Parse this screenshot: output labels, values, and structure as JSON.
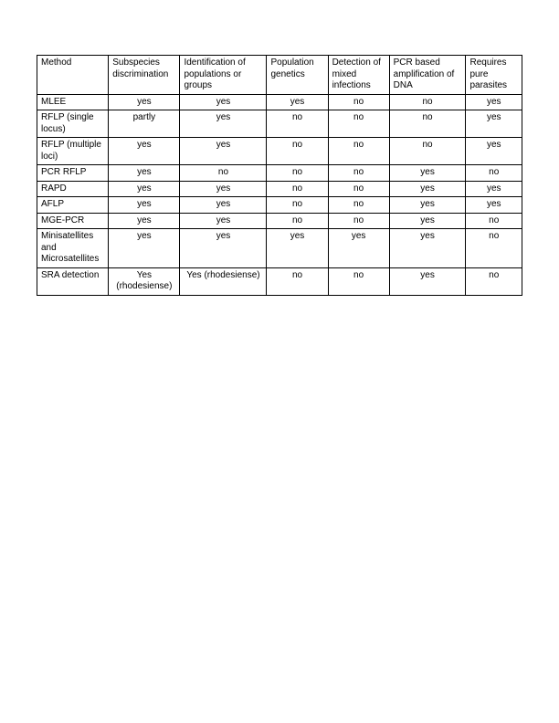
{
  "table": {
    "columns": [
      "Method",
      "Subspecies discrimination",
      "Identification of populations or groups",
      "Population genetics",
      "Detection of mixed infections",
      "PCR based amplification of DNA",
      "Requires pure parasites"
    ],
    "rows": [
      {
        "method": "MLEE",
        "c1": "yes",
        "c2": "yes",
        "c3": "yes",
        "c4": "no",
        "c5": "no",
        "c6": "yes"
      },
      {
        "method": "RFLP (single locus)",
        "c1": "partly",
        "c2": "yes",
        "c3": "no",
        "c4": "no",
        "c5": "no",
        "c6": "yes"
      },
      {
        "method": "RFLP (multiple loci)",
        "c1": "yes",
        "c2": "yes",
        "c3": "no",
        "c4": "no",
        "c5": "no",
        "c6": "yes"
      },
      {
        "method": "PCR RFLP",
        "c1": "yes",
        "c2": "no",
        "c3": "no",
        "c4": "no",
        "c5": "yes",
        "c6": "no"
      },
      {
        "method": "RAPD",
        "c1": "yes",
        "c2": "yes",
        "c3": "no",
        "c4": "no",
        "c5": "yes",
        "c6": "yes"
      },
      {
        "method": "AFLP",
        "c1": "yes",
        "c2": "yes",
        "c3": "no",
        "c4": "no",
        "c5": "yes",
        "c6": "yes"
      },
      {
        "method": "MGE-PCR",
        "c1": "yes",
        "c2": "yes",
        "c3": "no",
        "c4": "no",
        "c5": "yes",
        "c6": "no"
      },
      {
        "method": "Minisatellites and Microsatellites",
        "c1": "yes",
        "c2": "yes",
        "c3": "yes",
        "c4": "yes",
        "c5": "yes",
        "c6": "no"
      },
      {
        "method": "SRA detection",
        "c1": "Yes (rhodesiense)",
        "c2": "Yes (rhodesiense)",
        "c3": "no",
        "c4": "no",
        "c5": "yes",
        "c6": "no"
      }
    ],
    "border_color": "#000000",
    "background_color": "#ffffff",
    "font_size": 10,
    "text_color": "#000000"
  }
}
